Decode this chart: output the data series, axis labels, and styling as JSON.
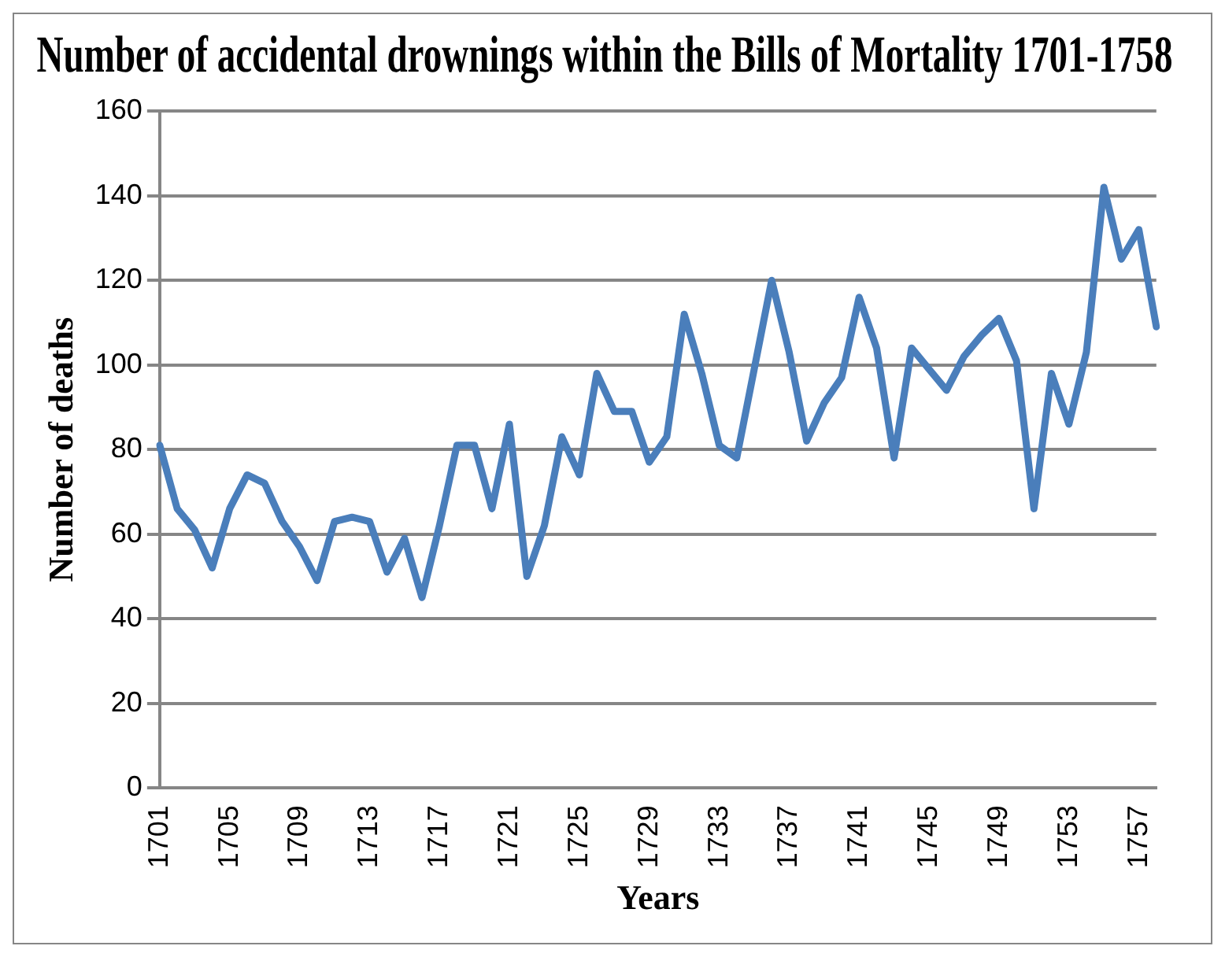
{
  "chart_data": {
    "type": "line",
    "title": "Number of accidental drownings within the Bills of Mortality 1701-1758",
    "xlabel": "Years",
    "ylabel": "Number of deaths",
    "categories": [
      "1701",
      null,
      null,
      null,
      "1705",
      null,
      null,
      null,
      "1709",
      null,
      null,
      null,
      "1713",
      null,
      null,
      null,
      "1717",
      null,
      null,
      null,
      "1721",
      null,
      null,
      null,
      "1725",
      null,
      null,
      null,
      "1729",
      null,
      null,
      null,
      "1733",
      null,
      null,
      null,
      "1737",
      null,
      null,
      null,
      "1741",
      null,
      null,
      null,
      "1745",
      null,
      null,
      null,
      "1749",
      null,
      null,
      null,
      "1753",
      null,
      null,
      null,
      "1757",
      null
    ],
    "series": [
      {
        "color": "#4a7ebb",
        "values": [
          81,
          66,
          61,
          52,
          66,
          74,
          72,
          63,
          57,
          49,
          63,
          64,
          63,
          51,
          59,
          45,
          62,
          81,
          81,
          66,
          86,
          50,
          62,
          83,
          74,
          98,
          89,
          89,
          77,
          83,
          112,
          98,
          81,
          78,
          99,
          120,
          103,
          82,
          91,
          97,
          116,
          104,
          78,
          104,
          99,
          94,
          102,
          107,
          111,
          101,
          66,
          98,
          86,
          103,
          142,
          125,
          132,
          109
        ]
      }
    ],
    "ylim": [
      0,
      160
    ],
    "yticks": [
      0,
      20,
      40,
      60,
      80,
      100,
      120,
      140,
      160
    ],
    "grid": "y",
    "legend": false,
    "marker": "none",
    "line_style": "solid"
  }
}
